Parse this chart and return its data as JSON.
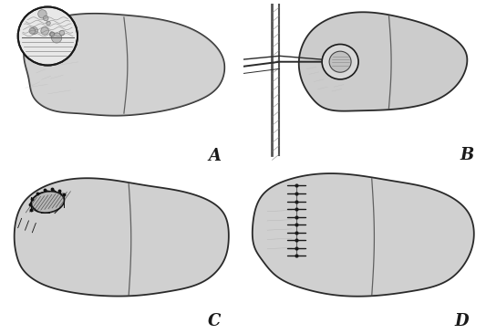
{
  "bg": "#f8f8f8",
  "liver_light": "#d4d4d4",
  "liver_mid": "#b8b8b8",
  "liver_dark": "#989898",
  "liver_edge": "#2a2a2a",
  "cyst_fill": "#d0d0d0",
  "wall_fill": "#c0c0c0",
  "suture_color": "#111111",
  "label_fontsize": 13,
  "label_color": "#1a1a1a",
  "labels": [
    "A",
    "B",
    "C",
    "D"
  ]
}
